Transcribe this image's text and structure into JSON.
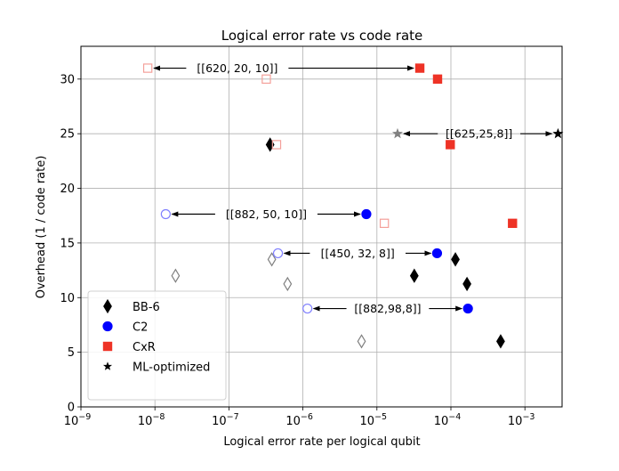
{
  "chart_data": {
    "type": "scatter",
    "title": "Logical error rate vs code rate",
    "xlabel": "Logical error rate per logical qubit",
    "ylabel": "Overhead (1 / code rate)",
    "xscale": "log",
    "xlim": [
      1e-09,
      0.0032
    ],
    "ylim": [
      0,
      33
    ],
    "xticks": [
      1e-09,
      1e-08,
      1e-07,
      1e-06,
      1e-05,
      0.0001,
      0.001
    ],
    "xtick_labels": [
      {
        "base": "10",
        "exp": "−9"
      },
      {
        "base": "10",
        "exp": "−8"
      },
      {
        "base": "10",
        "exp": "−7"
      },
      {
        "base": "10",
        "exp": "−6"
      },
      {
        "base": "10",
        "exp": "−5"
      },
      {
        "base": "10",
        "exp": "−4"
      },
      {
        "base": "10",
        "exp": "−3"
      }
    ],
    "yticks": [
      0,
      5,
      10,
      15,
      20,
      25,
      30
    ],
    "ytick_labels": [
      "0",
      "5",
      "10",
      "15",
      "20",
      "25",
      "30"
    ],
    "grid": true,
    "legend_position": "bottom-left",
    "colors": {
      "bb6": "#000000",
      "c2": "#0000ff",
      "cxr": "#ee3326",
      "ml": "#000000",
      "bb6_open": "#808080",
      "c2_open": "#8080ff",
      "cxr_open": "#f4a09a",
      "ml_open": "#808080"
    },
    "series": [
      {
        "name": "BB-6",
        "marker": "diamond",
        "filled": [
          {
            "x": 3.6e-07,
            "y": 24
          },
          {
            "x": 0.000115,
            "y": 13.5
          },
          {
            "x": 3.2e-05,
            "y": 12
          },
          {
            "x": 0.000165,
            "y": 11.25
          },
          {
            "x": 0.00047,
            "y": 6
          }
        ],
        "open": [
          {
            "x": 3.8e-07,
            "y": 13.5
          },
          {
            "x": 1.9e-08,
            "y": 12
          },
          {
            "x": 6.2e-07,
            "y": 11.25
          },
          {
            "x": 6.2e-06,
            "y": 6
          }
        ]
      },
      {
        "name": "C2",
        "marker": "circle",
        "filled": [
          {
            "x": 7.2e-06,
            "y": 17.64
          },
          {
            "x": 6.5e-05,
            "y": 14.06
          },
          {
            "x": 0.00017,
            "y": 9.0
          }
        ],
        "open": [
          {
            "x": 1.4e-08,
            "y": 17.64
          },
          {
            "x": 4.6e-07,
            "y": 14.06
          },
          {
            "x": 1.15e-06,
            "y": 9.0
          }
        ]
      },
      {
        "name": "CxR",
        "marker": "square",
        "filled": [
          {
            "x": 3.8e-05,
            "y": 31
          },
          {
            "x": 6.6e-05,
            "y": 30
          },
          {
            "x": 9.8e-05,
            "y": 24
          },
          {
            "x": 0.00068,
            "y": 16.8
          }
        ],
        "open": [
          {
            "x": 8e-09,
            "y": 31
          },
          {
            "x": 3.2e-07,
            "y": 30
          },
          {
            "x": 4.4e-07,
            "y": 24
          },
          {
            "x": 1.26e-05,
            "y": 16.8
          }
        ]
      },
      {
        "name": "ML-optimized",
        "marker": "star",
        "filled": [
          {
            "x": 0.0028,
            "y": 25
          }
        ],
        "open": [
          {
            "x": 1.9e-05,
            "y": 25
          }
        ]
      }
    ],
    "annotations": [
      {
        "text": "[[620, 20, 10]]",
        "x_from": 3.8e-05,
        "x_to": 8e-09,
        "y": 31,
        "text_x": 1.3e-07,
        "arrows": "both"
      },
      {
        "text": "[[625,25,8]]",
        "x_from": 1.9e-05,
        "x_to": 0.0028,
        "y": 25,
        "text_x": 0.00024,
        "arrows": "both"
      },
      {
        "text": "[[882, 50, 10]]",
        "x_from": 1.4e-08,
        "x_to": 7.2e-06,
        "y": 17.64,
        "text_x": 3.2e-07,
        "arrows": "both"
      },
      {
        "text": "[[450, 32, 8]]",
        "x_from": 4.6e-07,
        "x_to": 6.5e-05,
        "y": 14.06,
        "text_x": 5.5e-06,
        "arrows": "both"
      },
      {
        "text": "[[882,98,8]]",
        "x_from": 1.15e-06,
        "x_to": 0.00017,
        "y": 9.0,
        "text_x": 1.4e-05,
        "arrows": "both"
      }
    ],
    "legend": [
      {
        "label": "BB-6",
        "marker": "diamond",
        "color": "#000000"
      },
      {
        "label": "C2",
        "marker": "circle",
        "color": "#0000ff"
      },
      {
        "label": "CxR",
        "marker": "square",
        "color": "#ee3326"
      },
      {
        "label": "ML-optimized",
        "marker": "star",
        "color": "#000000"
      }
    ]
  }
}
